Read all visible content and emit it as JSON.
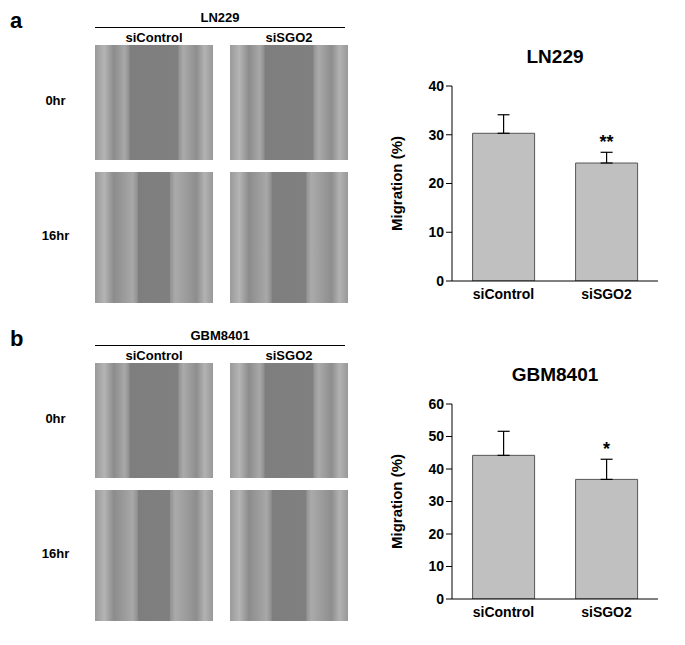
{
  "panels": [
    {
      "label": "a",
      "title": "LN229",
      "columns": [
        "siControl",
        "siSGO2"
      ],
      "rows": [
        "0hr",
        "16hr"
      ]
    },
    {
      "label": "b",
      "title": "GBM8401",
      "columns": [
        "siControl",
        "siSGO2"
      ],
      "rows": [
        "0hr",
        "16hr"
      ]
    }
  ],
  "chart_data": [
    {
      "type": "bar",
      "title": "LN229",
      "ylabel": "Migration (%)",
      "categories": [
        "siControl",
        "siSGO2"
      ],
      "values": [
        30.3,
        24.2
      ],
      "errors": [
        3.8,
        2.2
      ],
      "annotations": [
        null,
        "**"
      ],
      "color": "#c0c0c0",
      "ylim": [
        0,
        40
      ],
      "yticks": [
        0,
        10,
        20,
        30,
        40
      ]
    },
    {
      "type": "bar",
      "title": "GBM8401",
      "ylabel": "Migration (%)",
      "categories": [
        "siControl",
        "siSGO2"
      ],
      "values": [
        44.2,
        36.8
      ],
      "errors": [
        7.4,
        6.2
      ],
      "annotations": [
        null,
        "*"
      ],
      "color": "#c0c0c0",
      "ylim": [
        0,
        60
      ],
      "yticks": [
        0,
        10,
        20,
        30,
        40,
        50,
        60
      ]
    }
  ]
}
